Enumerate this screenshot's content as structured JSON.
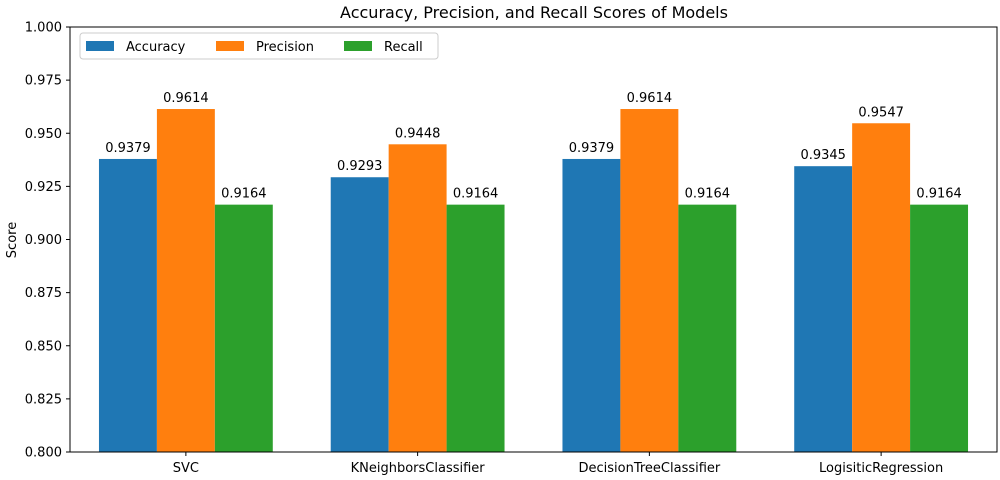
{
  "chart_data": {
    "type": "bar",
    "title": "Accuracy, Precision, and Recall Scores of Models",
    "xlabel": "",
    "ylabel": "Score",
    "ylim": [
      0.8,
      1.0
    ],
    "yticks": [
      "0.800",
      "0.825",
      "0.850",
      "0.875",
      "0.900",
      "0.925",
      "0.950",
      "0.975",
      "1.000"
    ],
    "categories": [
      "SVC",
      "KNeighborsClassifier",
      "DecisionTreeClassifier",
      "LogisiticRegression"
    ],
    "series": [
      {
        "name": "Accuracy",
        "color": "#1f77b4",
        "values": [
          0.9379,
          0.9293,
          0.9379,
          0.9345
        ],
        "labels": [
          "0.9379",
          "0.9293",
          "0.9379",
          "0.9345"
        ]
      },
      {
        "name": "Precision",
        "color": "#ff7f0e",
        "values": [
          0.9614,
          0.9448,
          0.9614,
          0.9547
        ],
        "labels": [
          "0.9614",
          "0.9448",
          "0.9614",
          "0.9547"
        ]
      },
      {
        "name": "Recall",
        "color": "#2ca02c",
        "values": [
          0.9164,
          0.9164,
          0.9164,
          0.9164
        ],
        "labels": [
          "0.9164",
          "0.9164",
          "0.9164",
          "0.9164"
        ]
      }
    ],
    "legend": {
      "position": "top-left",
      "columns": 3
    },
    "grid": false
  }
}
